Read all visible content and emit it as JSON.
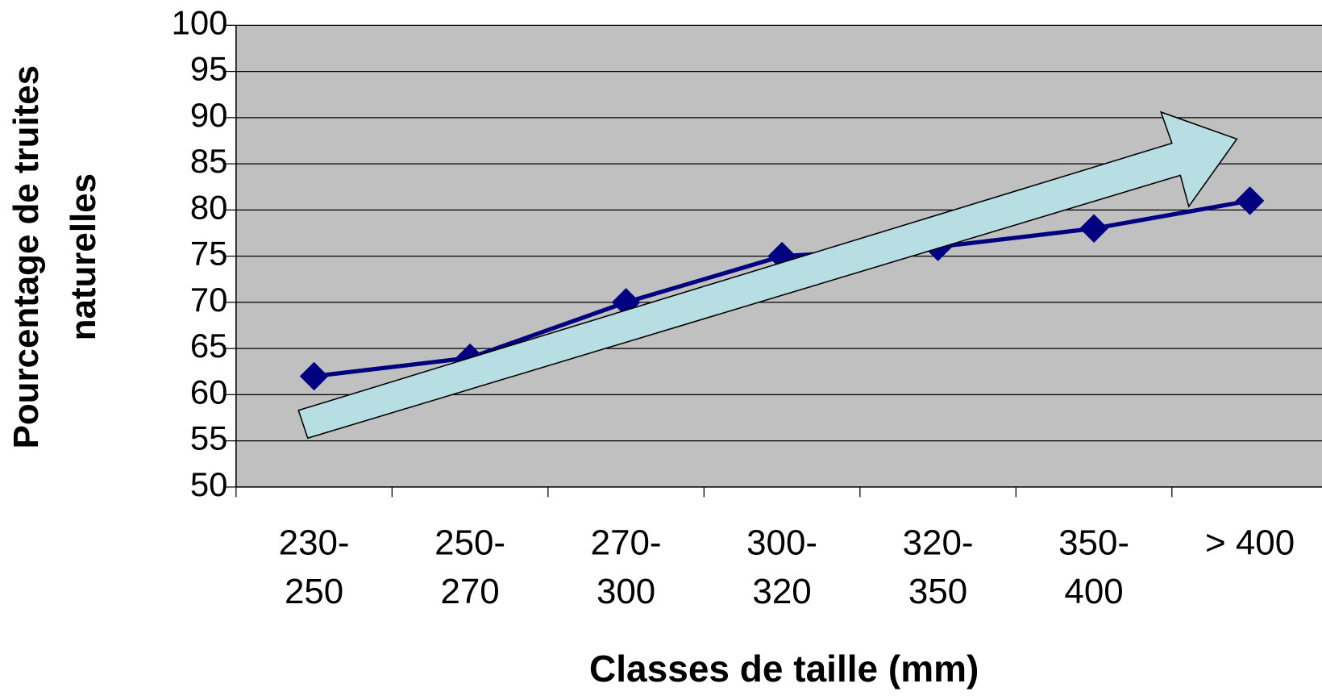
{
  "chart_data": {
    "type": "line",
    "y_label": "Pourcentage de truites naturelles",
    "x_label": "Classes de taille (mm)",
    "categories": [
      "230- 250",
      "250- 270",
      "270- 300",
      "300- 320",
      "320- 350",
      "350- 400",
      "> 400"
    ],
    "values": [
      62,
      64,
      70,
      75,
      76,
      78,
      81
    ],
    "color": "#000080",
    "ylim": [
      50,
      100
    ],
    "yticks": [
      50,
      55,
      60,
      65,
      70,
      75,
      80,
      85,
      90,
      95,
      100
    ],
    "grid": true
  }
}
